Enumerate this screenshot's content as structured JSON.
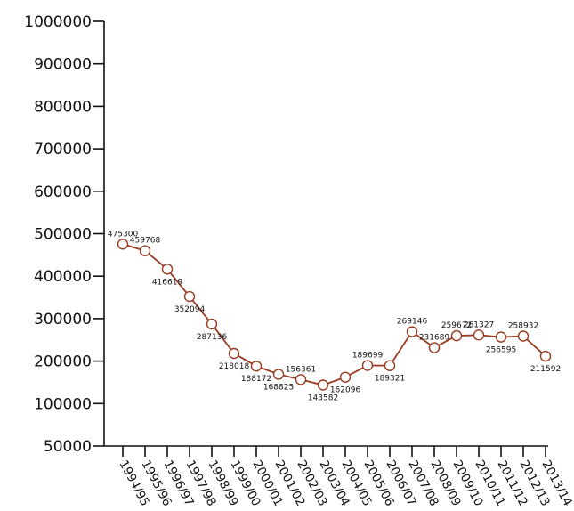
{
  "chart_data": {
    "type": "line",
    "title": "",
    "xlabel": "",
    "ylabel": "",
    "grid": false,
    "ylim": [
      50000,
      1000000
    ],
    "yticks": [
      "50000",
      "100000",
      "200000",
      "300000",
      "400000",
      "500000",
      "600000",
      "700000",
      "800000",
      "900000",
      "1000000"
    ],
    "categories": [
      "1994/95",
      "1995/96",
      "1996/97",
      "1997/98",
      "1998/99",
      "1999/00",
      "2000/01",
      "2001/02",
      "2002/03",
      "2003/04",
      "2004/05",
      "2005/06",
      "2006/07",
      "2007/08",
      "2008/09",
      "2009/10",
      "2010/11",
      "2011/12",
      "2012/13",
      "2013/14"
    ],
    "series": [
      {
        "color": "#9a3b22",
        "values": [
          475300,
          459768,
          416619,
          352094,
          287136,
          218018,
          188172,
          168825,
          156361,
          143582,
          162096,
          189699,
          189321,
          269146,
          231689,
          259672,
          261327,
          256595,
          258932,
          211592
        ]
      }
    ]
  }
}
